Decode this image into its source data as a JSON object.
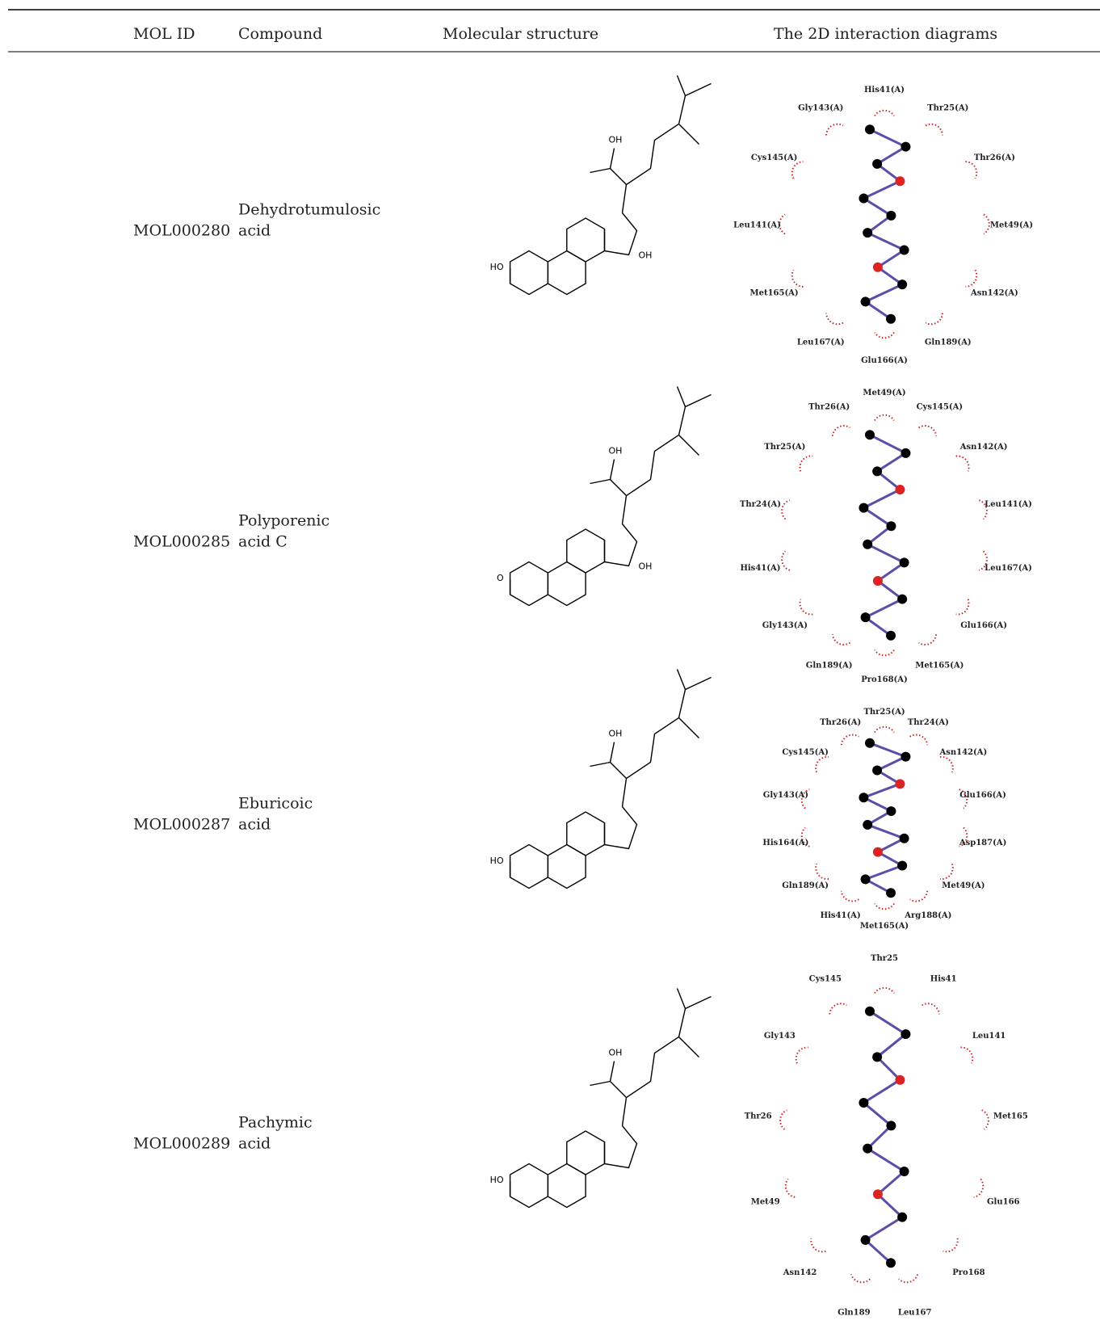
{
  "header": {
    "columns": [
      "MOL ID",
      "Compound",
      "Molecular structure",
      "The 2D interaction diagrams"
    ]
  },
  "table": {
    "rows": [
      {
        "mol_id": "MOL000280",
        "compound": [
          "Dehydrotumulosic",
          "acid"
        ],
        "structure_labels": [
          "OH",
          "HO",
          "OH"
        ],
        "residues": [
          "His41(A)",
          "Thr25(A)",
          "Thr26(A)",
          "Met49(A)",
          "Asn142(A)",
          "Gln189(A)",
          "Glu166(A)",
          "Leu167(A)",
          "Met165(A)",
          "Leu141(A)",
          "Cys145(A)",
          "Gly143(A)"
        ]
      },
      {
        "mol_id": "MOL000285",
        "compound": [
          "Polyporenic",
          "acid C"
        ],
        "structure_labels": [
          "OH",
          "O",
          "OH"
        ],
        "residues": [
          "Met49(A)",
          "Cys145(A)",
          "Asn142(A)",
          "Leu141(A)",
          "Leu167(A)",
          "Glu166(A)",
          "Met165(A)",
          "Pro168(A)",
          "Gln189(A)",
          "Gly143(A)",
          "His41(A)",
          "Thr24(A)",
          "Thr25(A)",
          "Thr26(A)"
        ]
      },
      {
        "mol_id": "MOL000287",
        "compound": [
          "Eburicoic",
          "acid"
        ],
        "structure_labels": [
          "OH",
          "HO"
        ],
        "residues": [
          "Thr25(A)",
          "Thr24(A)",
          "Asn142(A)",
          "Glu166(A)",
          "Asp187(A)",
          "Met49(A)",
          "Arg188(A)",
          "Met165(A)",
          "His41(A)",
          "Gln189(A)",
          "His164(A)",
          "Gly143(A)",
          "Cys145(A)",
          "Thr26(A)"
        ]
      },
      {
        "mol_id": "MOL000289",
        "compound": [
          "Pachymic",
          "acid"
        ],
        "structure_labels": [
          "OH",
          "HO"
        ],
        "residues": [
          "Thr25",
          "His41",
          "Leu141",
          "Met165",
          "Glu166",
          "Pro168",
          "Leu167",
          "Gln189",
          "Asn142",
          "Met49",
          "Thr26",
          "Gly143",
          "Cys145"
        ]
      }
    ]
  }
}
